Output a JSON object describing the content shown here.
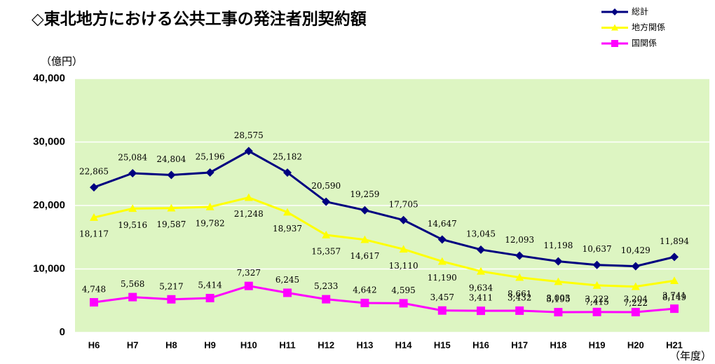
{
  "chart_data": {
    "type": "line",
    "title": "◇東北地方における公共工事の発注者別契約額",
    "y_label": "（億円）",
    "x_label": "（年度）",
    "categories": [
      "H6",
      "H7",
      "H8",
      "H9",
      "H10",
      "H11",
      "H12",
      "H13",
      "H14",
      "H15",
      "H16",
      "H17",
      "H18",
      "H19",
      "H20",
      "H21"
    ],
    "series": [
      {
        "name": "総計",
        "color": "#000080",
        "marker": "diamond",
        "values": [
          22865,
          25084,
          24804,
          25196,
          28575,
          25182,
          20590,
          19259,
          17705,
          14647,
          13045,
          12093,
          11198,
          10637,
          10429,
          11894
        ],
        "value_labels": [
          "22,865",
          "25,084",
          "24,804",
          "25,196",
          "28,575",
          "25,182",
          "20,590",
          "19,259",
          "17,705",
          "14,647",
          "13,045",
          "12,093",
          "11,198",
          "10,637",
          "10,429",
          "11,894"
        ]
      },
      {
        "name": "地方関係",
        "color": "#ffff00",
        "marker": "triangle",
        "values": [
          18117,
          19516,
          19587,
          19782,
          21248,
          18937,
          15357,
          14617,
          13110,
          11190,
          9634,
          8661,
          8003,
          7415,
          7222,
          8149
        ],
        "value_labels": [
          "18,117",
          "19,516",
          "19,587",
          "19,782",
          "21,248",
          "18,937",
          "15,357",
          "14,617",
          "13,110",
          "11,190",
          "9,634",
          "8,661",
          "8,003",
          "7,415",
          "7,222",
          "8,149"
        ]
      },
      {
        "name": "国関係",
        "color": "#ff00ff",
        "marker": "square",
        "values": [
          4748,
          5568,
          5217,
          5414,
          7327,
          6245,
          5233,
          4642,
          4595,
          3457,
          3411,
          3432,
          3195,
          3222,
          3204,
          3741
        ],
        "value_labels": [
          "4,748",
          "5,568",
          "5,217",
          "5,414",
          "7,327",
          "6,245",
          "5,233",
          "4,642",
          "4,595",
          "3,457",
          "3,411",
          "3,432",
          "3,195",
          "3,222",
          "3,204",
          "3,741"
        ]
      }
    ],
    "ylim": [
      0,
      40000
    ],
    "yticks": [
      0,
      {
        "value": 10000,
        "label": "10,000"
      },
      {
        "value": 20000,
        "label": "20,000"
      },
      {
        "value": 30000,
        "label": "30,000"
      },
      {
        "value": 40000,
        "label": "40,000"
      }
    ],
    "grid": true,
    "legend": "top-right"
  }
}
